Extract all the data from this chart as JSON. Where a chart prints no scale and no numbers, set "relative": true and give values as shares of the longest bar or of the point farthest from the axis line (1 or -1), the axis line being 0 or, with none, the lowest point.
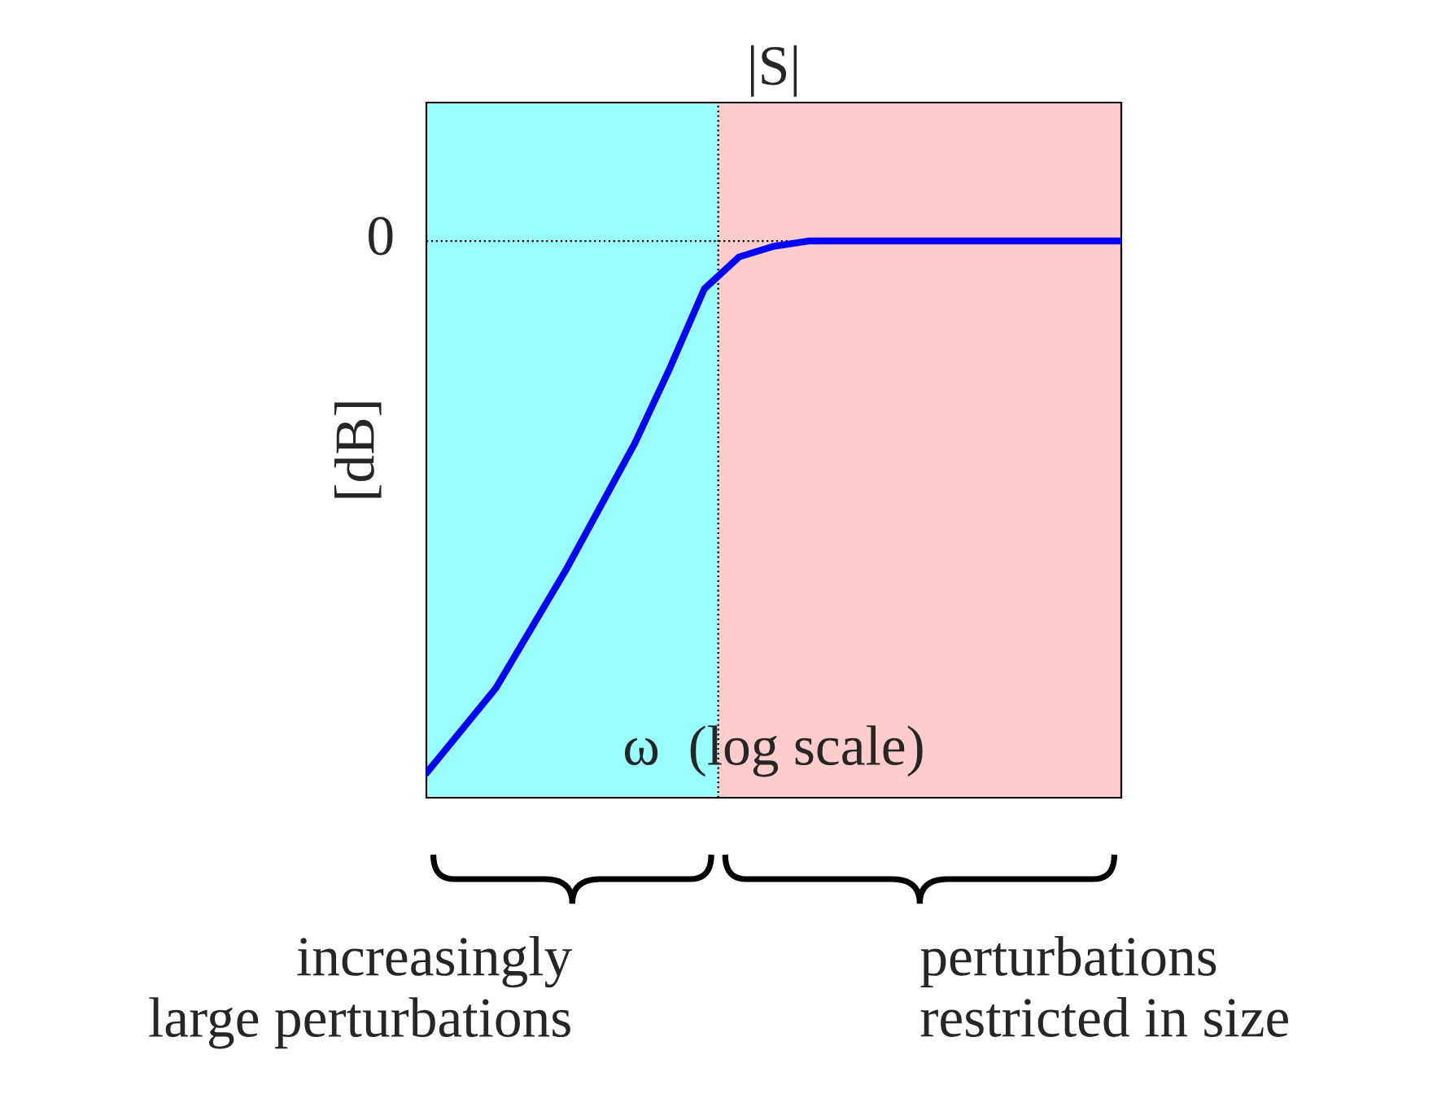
{
  "chart_data": {
    "type": "line",
    "title": "|S|",
    "ylabel": "[dB]",
    "relative": true,
    "categories": [
      null,
      null,
      null,
      null,
      null,
      null,
      null,
      null,
      null,
      null,
      null,
      null,
      null,
      null,
      null,
      null,
      null,
      null,
      null,
      null,
      null
    ],
    "series": [
      {
        "color": "#0000ff",
        "values": [
          -1,
          -0.92,
          -0.84,
          -0.73,
          -0.62,
          -0.5,
          -0.38,
          -0.24,
          -0.09,
          -0.03,
          -0.01,
          0,
          0,
          0,
          0,
          0,
          0,
          0,
          0,
          0,
          0
        ]
      }
    ],
    "ref_lines": [
      {
        "axis": "y",
        "value": 0,
        "label": "0",
        "line_style": "dotted",
        "color": "#000000"
      }
    ],
    "annotations": [
      "ω  (log scale)",
      "increasingly\nlarge perturbations",
      "perturbations\nrestricted in size"
    ]
  }
}
